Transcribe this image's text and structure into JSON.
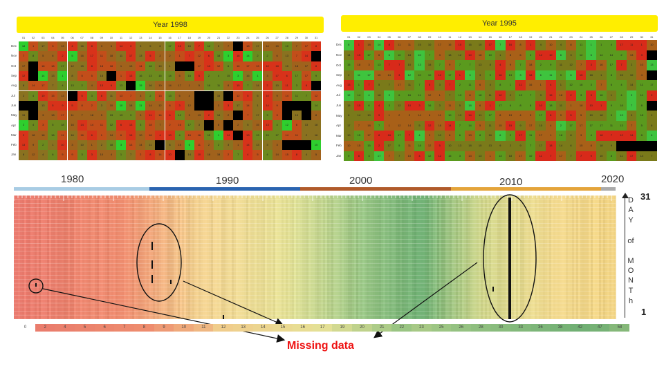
{
  "chart_data": [
    {
      "type": "heatmap",
      "title": "Year 1998",
      "columns": [
        "01",
        "02",
        "03",
        "04",
        "05",
        "06",
        "07",
        "08",
        "09",
        "10",
        "11",
        "12",
        "13",
        "14",
        "15",
        "16",
        "17",
        "18",
        "19",
        "20",
        "21",
        "22",
        "23",
        "24",
        "25",
        "26",
        "27",
        "28",
        "29",
        "30",
        "31"
      ],
      "rows": [
        "Dec",
        "Nov",
        "Oct",
        "Sep",
        "Aug",
        "Jul",
        "Jun",
        "May",
        "Apr",
        "Mar",
        "Feb",
        "Jan"
      ],
      "missing_cells": [
        [
          0,
          23
        ],
        [
          1,
          31
        ],
        [
          2,
          2
        ],
        [
          2,
          17
        ],
        [
          2,
          18
        ],
        [
          3,
          2
        ],
        [
          3,
          10
        ],
        [
          4,
          12
        ],
        [
          4,
          31
        ],
        [
          5,
          6
        ],
        [
          5,
          19
        ],
        [
          5,
          20
        ],
        [
          5,
          22
        ],
        [
          6,
          1
        ],
        [
          6,
          2
        ],
        [
          6,
          19
        ],
        [
          6,
          20
        ],
        [
          6,
          28
        ],
        [
          6,
          29
        ],
        [
          6,
          30
        ],
        [
          7,
          2
        ],
        [
          7,
          23
        ],
        [
          7,
          28
        ],
        [
          7,
          30
        ],
        [
          8,
          20
        ],
        [
          8,
          22
        ],
        [
          9,
          23
        ],
        [
          10,
          15
        ],
        [
          10,
          28
        ],
        [
          10,
          29
        ],
        [
          10,
          30
        ],
        [
          11,
          17
        ]
      ],
      "palette": [
        "#d8321a",
        "#c24e1a",
        "#a0621c",
        "#8a7220",
        "#6c8a1e",
        "#2ecf2e"
      ]
    },
    {
      "type": "heatmap",
      "title": "Year 1995",
      "columns": [
        "01",
        "02",
        "03",
        "04",
        "05",
        "06",
        "07",
        "08",
        "09",
        "10",
        "11",
        "12",
        "13",
        "14",
        "15",
        "16",
        "17",
        "18",
        "19",
        "20",
        "21",
        "22",
        "23",
        "24",
        "25",
        "26",
        "27",
        "28",
        "29",
        "30",
        "31"
      ],
      "rows": [
        "Dec",
        "Nov",
        "Oct",
        "Sep",
        "Aug",
        "Jul",
        "Jun",
        "May",
        "Apr",
        "Mar",
        "Feb",
        "Jan"
      ],
      "missing_cells": [
        [
          1,
          31
        ],
        [
          3,
          31
        ],
        [
          6,
          31
        ],
        [
          10,
          28
        ],
        [
          10,
          29
        ],
        [
          10,
          30
        ],
        [
          10,
          31
        ]
      ],
      "palette": [
        "#d82a1a",
        "#a86018",
        "#7a7a1a",
        "#5a9a1e",
        "#3ec43e"
      ]
    },
    {
      "type": "heatmap",
      "x_decades": [
        "1980",
        "1990",
        "2000",
        "2010",
        "2020"
      ],
      "y_axis_label": [
        "D",
        "A",
        "Y",
        "of",
        "M",
        "O",
        "N",
        "T",
        "h"
      ],
      "y_top": "31",
      "y_bottom": "1",
      "legend": [
        "0",
        "2",
        "4",
        "5",
        "6",
        "7",
        "8",
        "9",
        "10",
        "11",
        "12",
        "13",
        "14",
        "15",
        "16",
        "17",
        "19",
        "20",
        "21",
        "22",
        "23",
        "25",
        "26",
        "28",
        "30",
        "33",
        "36",
        "38",
        "42",
        "47",
        "58"
      ],
      "decade_colors": [
        "#a8cce4",
        "#2a64b0",
        "#b05a2a",
        "#e4a43a",
        "#aaaaaa"
      ],
      "annotation": "Missing data"
    }
  ]
}
